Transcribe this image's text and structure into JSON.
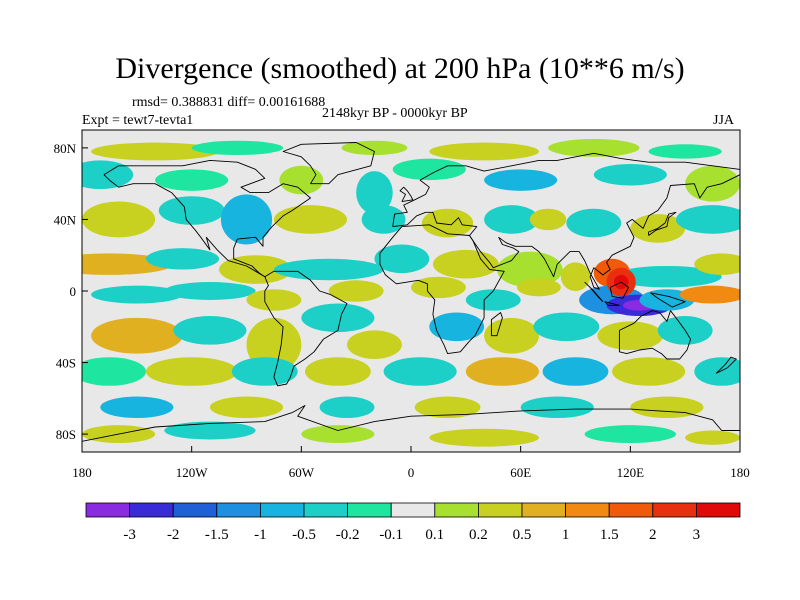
{
  "title": "Divergence (smoothed) at 200 hPa (10**6 m/s)",
  "stats": "rmsd= 0.388831 diff= 0.00161688",
  "period": "2148kyr BP - 0000kyr BP",
  "experiment": "Expt = tewt7-tevta1",
  "season": "JJA",
  "map": {
    "lon_labels": [
      "180",
      "120W",
      "60W",
      "0",
      "60E",
      "120E",
      "180"
    ],
    "lat_labels": [
      "80N",
      "40N",
      "0",
      "40S",
      "80S"
    ]
  },
  "colorbar": {
    "labels": [
      "-3",
      "-2",
      "-1.5",
      "-1",
      "-0.5",
      "-0.2",
      "-0.1",
      "0.1",
      "0.2",
      "0.5",
      "1",
      "1.5",
      "2",
      "3"
    ],
    "colors": [
      "#8a2be2",
      "#3a2bd9",
      "#1f60d8",
      "#1e90e0",
      "#18b4e0",
      "#1cd0c8",
      "#1ee6a0",
      "#e8e8e8",
      "#a8e030",
      "#c8d020",
      "#e0b020",
      "#f08a10",
      "#f05a08",
      "#e83010",
      "#e00a0a"
    ]
  },
  "colors": {
    "neutral": "#e8e8e8",
    "coast": "#000000"
  }
}
